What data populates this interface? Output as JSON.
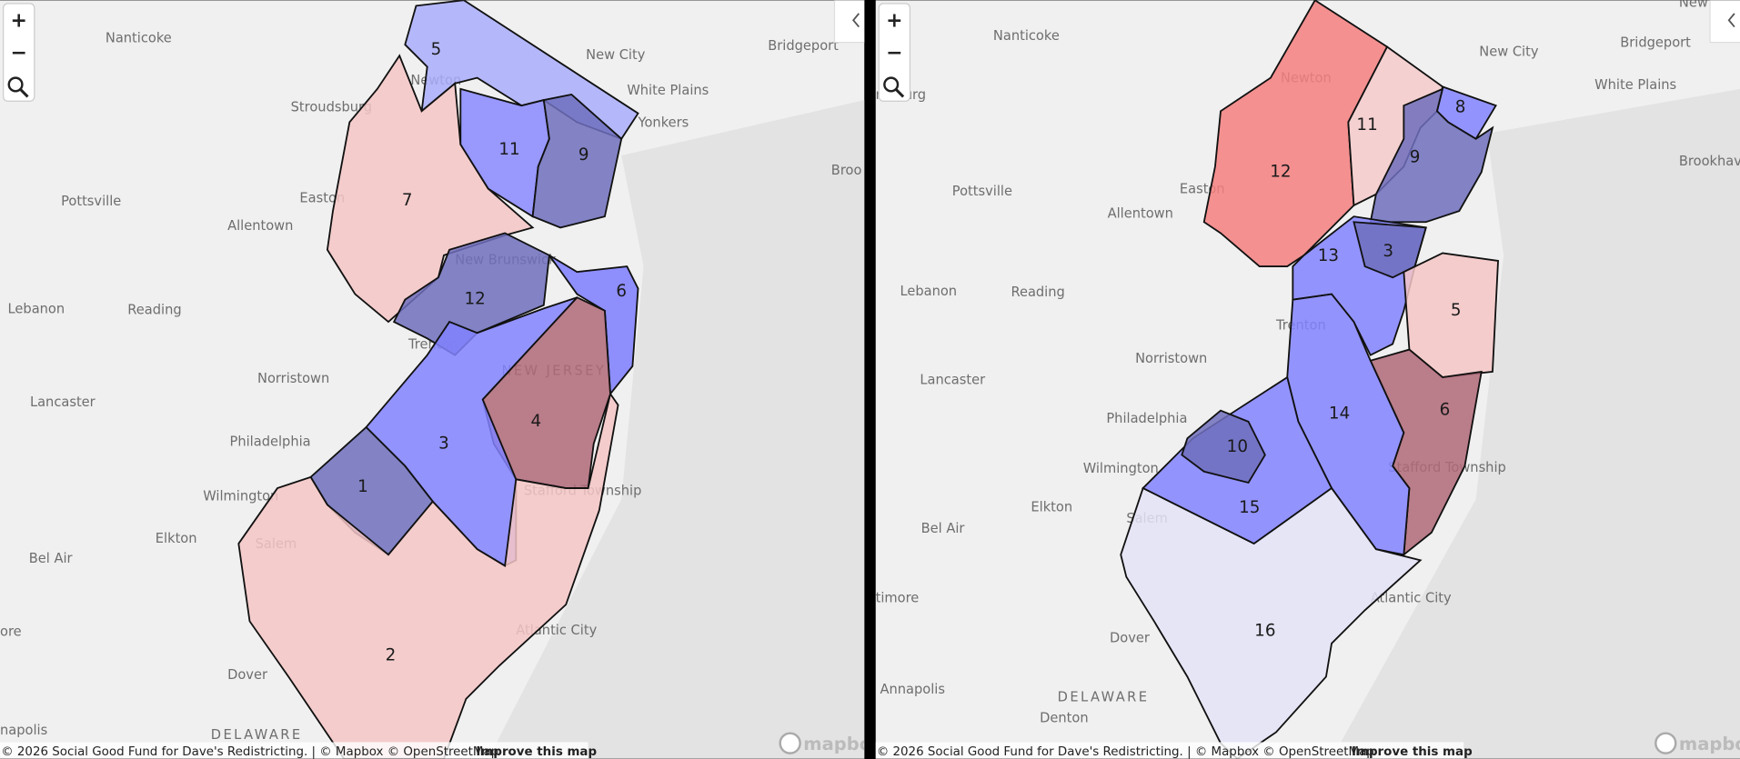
{
  "controls": {
    "zoom_in": "+",
    "zoom_out": "−"
  },
  "panels": [
    {
      "districts": [
        {
          "label": "5",
          "color": "#a9aefc"
        },
        {
          "label": "7",
          "color": "#f5c5c5"
        },
        {
          "label": "11",
          "color": "#8888ff"
        },
        {
          "label": "9",
          "color": "#6f6fbd"
        },
        {
          "label": "12",
          "color": "#6f6fbd"
        },
        {
          "label": "6",
          "color": "#7d7dff"
        },
        {
          "label": "4",
          "color": "#b06878"
        },
        {
          "label": "3",
          "color": "#8282ff"
        },
        {
          "label": "1",
          "color": "#6f6fbd"
        },
        {
          "label": "2",
          "color": "#f5c5c5"
        }
      ],
      "places": [
        "Nanticoke",
        "New City",
        "Bridgeport",
        "White Plains",
        "Yonkers",
        "Stroudsburg",
        "Pottsville",
        "Easton",
        "Allentown",
        "Lebanon",
        "Reading",
        "Norristown",
        "Lancaster",
        "Philadelphia",
        "Wilmington",
        "Elkton",
        "Bel Air",
        "Dover",
        "Newton",
        "New Brunswick",
        "Trenton",
        "Stafford Township",
        "Atlantic City",
        "Salem",
        "DELAWARE",
        "NEW JERSEY",
        "Broo",
        "ore",
        "napolis"
      ],
      "attribution": "© 2026 Social Good Fund for Dave's Redistricting. | © Mapbox © OpenStreetMap",
      "improve": "Improve this map",
      "logo": "mapbox"
    },
    {
      "districts": [
        {
          "label": "12",
          "color": "#f47f7f"
        },
        {
          "label": "11",
          "color": "#f5caca"
        },
        {
          "label": "8",
          "color": "#8383ff"
        },
        {
          "label": "9",
          "color": "#6f6fbd"
        },
        {
          "label": "13",
          "color": "#8383ff"
        },
        {
          "label": "3",
          "color": "#6f6fbd"
        },
        {
          "label": "5",
          "color": "#f5c5c5"
        },
        {
          "label": "6",
          "color": "#b06878"
        },
        {
          "label": "14",
          "color": "#8383ff"
        },
        {
          "label": "15",
          "color": "#8383ff"
        },
        {
          "label": "10",
          "color": "#6f6fbd"
        },
        {
          "label": "16",
          "color": "#e3e3f7"
        }
      ],
      "places": [
        "Nanticoke",
        "New City",
        "Bridgeport",
        "White Plains",
        "Brookhav",
        "msburg",
        "Pottsville",
        "Allentown",
        "Easton",
        "Newton",
        "Lebanon",
        "Reading",
        "Norristown",
        "Lancaster",
        "Philadelphia",
        "Trenton",
        "Wilmington",
        "Elkton",
        "Bel Air",
        "timore",
        "Dover",
        "Annapolis",
        "DELAWARE",
        "Denton",
        "Salem",
        "Stafford Township",
        "Atlantic City",
        "New"
      ],
      "attribution": "© 2026 Social Good Fund for Dave's Redistricting. | © Mapbox © OpenStreetMap",
      "improve": "Improve this map",
      "logo": "mapbox"
    }
  ]
}
